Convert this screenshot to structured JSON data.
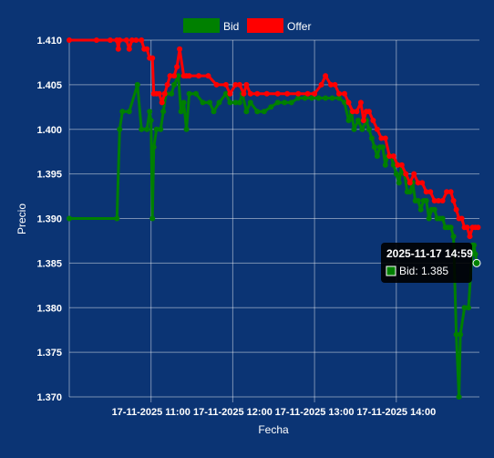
{
  "chart_data": {
    "type": "line",
    "title": "",
    "xlabel": "Fecha",
    "ylabel": "Precio",
    "ylim": [
      1.37,
      1.41
    ],
    "y_ticks": [
      "1.370",
      "1.375",
      "1.380",
      "1.385",
      "1.390",
      "1.395",
      "1.400",
      "1.405",
      "1.410"
    ],
    "x_ticks": [
      {
        "time": "11:00",
        "label": "17-11-2025 11:00"
      },
      {
        "time": "12:00",
        "label": "17-11-2025 12:00"
      },
      {
        "time": "13:00",
        "label": "17-11-2025 13:00"
      },
      {
        "time": "14:00",
        "label": "17-11-2025 14:00"
      }
    ],
    "xlim": [
      "10:00",
      "15:01"
    ],
    "grid": true,
    "legend_position": "top",
    "series": [
      {
        "name": "Bid",
        "color": "#008000",
        "points": [
          [
            "10:00",
            1.39
          ],
          [
            "10:35",
            1.39
          ],
          [
            "10:37",
            1.4
          ],
          [
            "10:39",
            1.402
          ],
          [
            "10:44",
            1.402
          ],
          [
            "10:50",
            1.405
          ],
          [
            "10:53",
            1.4
          ],
          [
            "10:57",
            1.4
          ],
          [
            "10:59",
            1.402
          ],
          [
            "11:00",
            1.401
          ],
          [
            "11:01",
            1.39
          ],
          [
            "11:02",
            1.398
          ],
          [
            "11:04",
            1.4
          ],
          [
            "11:07",
            1.4
          ],
          [
            "11:09",
            1.402
          ],
          [
            "11:11",
            1.404
          ],
          [
            "11:15",
            1.404
          ],
          [
            "11:17",
            1.405
          ],
          [
            "11:20",
            1.406
          ],
          [
            "11:22",
            1.402
          ],
          [
            "11:24",
            1.403
          ],
          [
            "11:26",
            1.4
          ],
          [
            "11:28",
            1.404
          ],
          [
            "11:33",
            1.404
          ],
          [
            "11:38",
            1.403
          ],
          [
            "11:43",
            1.403
          ],
          [
            "11:46",
            1.402
          ],
          [
            "11:50",
            1.403
          ],
          [
            "11:55",
            1.404
          ],
          [
            "11:58",
            1.403
          ],
          [
            "12:02",
            1.403
          ],
          [
            "12:05",
            1.403
          ],
          [
            "12:07",
            1.404
          ],
          [
            "12:10",
            1.402
          ],
          [
            "12:13",
            1.403
          ],
          [
            "12:18",
            1.402
          ],
          [
            "12:23",
            1.402
          ],
          [
            "12:28",
            1.4025
          ],
          [
            "12:33",
            1.403
          ],
          [
            "12:38",
            1.403
          ],
          [
            "12:43",
            1.403
          ],
          [
            "12:48",
            1.4035
          ],
          [
            "12:53",
            1.4035
          ],
          [
            "12:58",
            1.4035
          ],
          [
            "13:03",
            1.4035
          ],
          [
            "13:08",
            1.4035
          ],
          [
            "13:13",
            1.4035
          ],
          [
            "13:18",
            1.4035
          ],
          [
            "13:22",
            1.403
          ],
          [
            "13:25",
            1.401
          ],
          [
            "13:27",
            1.402
          ],
          [
            "13:29",
            1.4
          ],
          [
            "13:32",
            1.401
          ],
          [
            "13:35",
            1.4
          ],
          [
            "13:38",
            1.401
          ],
          [
            "13:40",
            1.4
          ],
          [
            "13:42",
            1.399
          ],
          [
            "13:44",
            1.398
          ],
          [
            "13:46",
            1.397
          ],
          [
            "13:48",
            1.398
          ],
          [
            "13:50",
            1.398
          ],
          [
            "13:52",
            1.396
          ],
          [
            "13:54",
            1.397
          ],
          [
            "13:56",
            1.397
          ],
          [
            "13:58",
            1.396
          ],
          [
            "14:00",
            1.395
          ],
          [
            "14:02",
            1.394
          ],
          [
            "14:04",
            1.396
          ],
          [
            "14:06",
            1.395
          ],
          [
            "14:08",
            1.393
          ],
          [
            "14:10",
            1.393
          ],
          [
            "14:12",
            1.394
          ],
          [
            "14:14",
            1.392
          ],
          [
            "14:16",
            1.392
          ],
          [
            "14:18",
            1.391
          ],
          [
            "14:20",
            1.392
          ],
          [
            "14:22",
            1.392
          ],
          [
            "14:24",
            1.39
          ],
          [
            "14:26",
            1.391
          ],
          [
            "14:28",
            1.391
          ],
          [
            "14:30",
            1.39
          ],
          [
            "14:32",
            1.39
          ],
          [
            "14:34",
            1.39
          ],
          [
            "14:36",
            1.389
          ],
          [
            "14:38",
            1.389
          ],
          [
            "14:40",
            1.389
          ],
          [
            "14:42",
            1.388
          ],
          [
            "14:44",
            1.377
          ],
          [
            "14:46",
            1.37
          ],
          [
            "14:47",
            1.377
          ],
          [
            "14:50",
            1.38
          ],
          [
            "14:53",
            1.38
          ],
          [
            "14:56",
            1.387
          ],
          [
            "14:57",
            1.387
          ],
          [
            "14:58",
            1.386
          ],
          [
            "14:59",
            1.385
          ]
        ]
      },
      {
        "name": "Offer",
        "color": "#ff0000",
        "points": [
          [
            "10:00",
            1.41
          ],
          [
            "10:20",
            1.41
          ],
          [
            "10:30",
            1.41
          ],
          [
            "10:35",
            1.41
          ],
          [
            "10:36",
            1.409
          ],
          [
            "10:37",
            1.41
          ],
          [
            "10:42",
            1.41
          ],
          [
            "10:44",
            1.409
          ],
          [
            "10:46",
            1.41
          ],
          [
            "10:49",
            1.41
          ],
          [
            "10:53",
            1.41
          ],
          [
            "10:55",
            1.409
          ],
          [
            "10:57",
            1.409
          ],
          [
            "10:59",
            1.408
          ],
          [
            "11:01",
            1.408
          ],
          [
            "11:02",
            1.404
          ],
          [
            "11:04",
            1.404
          ],
          [
            "11:06",
            1.404
          ],
          [
            "11:08",
            1.403
          ],
          [
            "11:10",
            1.404
          ],
          [
            "11:12",
            1.405
          ],
          [
            "11:14",
            1.406
          ],
          [
            "11:17",
            1.406
          ],
          [
            "11:19",
            1.407
          ],
          [
            "11:21",
            1.409
          ],
          [
            "11:24",
            1.406
          ],
          [
            "11:26",
            1.406
          ],
          [
            "11:28",
            1.406
          ],
          [
            "11:35",
            1.406
          ],
          [
            "11:42",
            1.406
          ],
          [
            "11:48",
            1.405
          ],
          [
            "11:55",
            1.405
          ],
          [
            "11:58",
            1.404
          ],
          [
            "12:02",
            1.405
          ],
          [
            "12:05",
            1.405
          ],
          [
            "12:08",
            1.404
          ],
          [
            "12:10",
            1.405
          ],
          [
            "12:13",
            1.404
          ],
          [
            "12:18",
            1.404
          ],
          [
            "12:25",
            1.404
          ],
          [
            "12:33",
            1.404
          ],
          [
            "12:40",
            1.404
          ],
          [
            "12:48",
            1.404
          ],
          [
            "12:55",
            1.404
          ],
          [
            "13:00",
            1.404
          ],
          [
            "13:05",
            1.405
          ],
          [
            "13:08",
            1.406
          ],
          [
            "13:12",
            1.405
          ],
          [
            "13:15",
            1.405
          ],
          [
            "13:18",
            1.404
          ],
          [
            "13:22",
            1.404
          ],
          [
            "13:25",
            1.403
          ],
          [
            "13:28",
            1.402
          ],
          [
            "13:31",
            1.402
          ],
          [
            "13:34",
            1.403
          ],
          [
            "13:36",
            1.401
          ],
          [
            "13:38",
            1.402
          ],
          [
            "13:40",
            1.402
          ],
          [
            "13:43",
            1.401
          ],
          [
            "13:46",
            1.4
          ],
          [
            "13:49",
            1.399
          ],
          [
            "13:52",
            1.399
          ],
          [
            "13:55",
            1.397
          ],
          [
            "13:58",
            1.397
          ],
          [
            "14:01",
            1.396
          ],
          [
            "14:04",
            1.396
          ],
          [
            "14:07",
            1.395
          ],
          [
            "14:10",
            1.394
          ],
          [
            "14:13",
            1.395
          ],
          [
            "14:16",
            1.394
          ],
          [
            "14:19",
            1.394
          ],
          [
            "14:22",
            1.393
          ],
          [
            "14:25",
            1.393
          ],
          [
            "14:28",
            1.392
          ],
          [
            "14:31",
            1.392
          ],
          [
            "14:34",
            1.392
          ],
          [
            "14:37",
            1.393
          ],
          [
            "14:40",
            1.393
          ],
          [
            "14:42",
            1.392
          ],
          [
            "14:44",
            1.391
          ],
          [
            "14:46",
            1.39
          ],
          [
            "14:48",
            1.39
          ],
          [
            "14:50",
            1.389
          ],
          [
            "14:52",
            1.389
          ],
          [
            "14:54",
            1.388
          ],
          [
            "14:56",
            1.389
          ],
          [
            "14:58",
            1.389
          ],
          [
            "15:00",
            1.389
          ]
        ]
      }
    ],
    "tooltip": {
      "title": "2025-11-17 14:59",
      "label": "Bid: 1.385",
      "series": "Bid",
      "time": "14:59",
      "value": 1.385
    }
  }
}
